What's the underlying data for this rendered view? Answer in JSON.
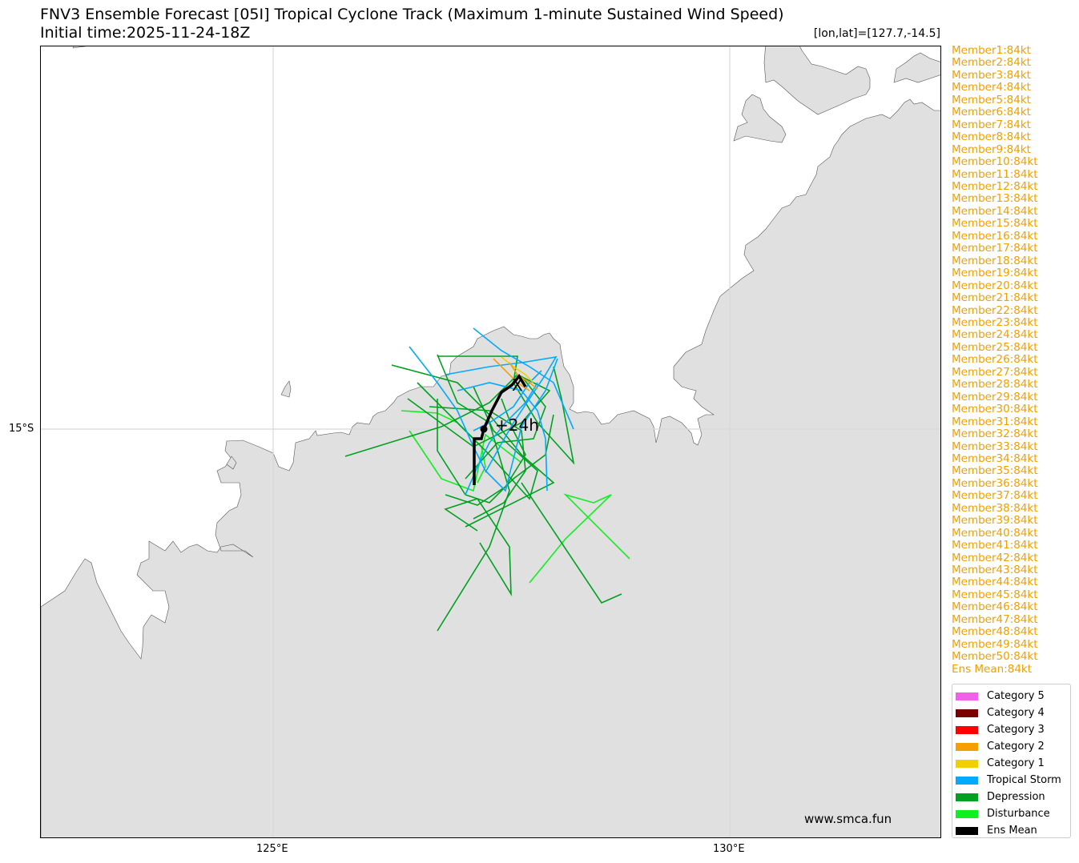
{
  "header": {
    "title_line1": "FNV3 Ensemble Forecast [05I] Tropical Cyclone Track (Maximum 1-minute Sustained Wind Speed)",
    "title_line2": "Initial time:2025-11-24-18Z",
    "coord_text": "[lon,lat]=[127.7,-14.5]"
  },
  "axes": {
    "lat_label": "15°S",
    "lon_labels": [
      "125°E",
      "130°E"
    ]
  },
  "map": {
    "ocean_color": "#ffffff",
    "land_color": "#e0e0e0",
    "coast_color": "#555555",
    "grid_color": "#d8d8d8",
    "annotation": "+24h",
    "storm_end_marker": "X"
  },
  "members": [
    "Member1:84kt",
    "Member2:84kt",
    "Member3:84kt",
    "Member4:84kt",
    "Member5:84kt",
    "Member6:84kt",
    "Member7:84kt",
    "Member8:84kt",
    "Member9:84kt",
    "Member10:84kt",
    "Member11:84kt",
    "Member12:84kt",
    "Member13:84kt",
    "Member14:84kt",
    "Member15:84kt",
    "Member16:84kt",
    "Member17:84kt",
    "Member18:84kt",
    "Member19:84kt",
    "Member20:84kt",
    "Member21:84kt",
    "Member22:84kt",
    "Member23:84kt",
    "Member24:84kt",
    "Member25:84kt",
    "Member26:84kt",
    "Member27:84kt",
    "Member28:84kt",
    "Member29:84kt",
    "Member30:84kt",
    "Member31:84kt",
    "Member32:84kt",
    "Member33:84kt",
    "Member34:84kt",
    "Member35:84kt",
    "Member36:84kt",
    "Member37:84kt",
    "Member38:84kt",
    "Member39:84kt",
    "Member40:84kt",
    "Member41:84kt",
    "Member42:84kt",
    "Member43:84kt",
    "Member44:84kt",
    "Member45:84kt",
    "Member46:84kt",
    "Member47:84kt",
    "Member48:84kt",
    "Member49:84kt",
    "Member50:84kt",
    "Ens Mean:84kt"
  ],
  "legend": [
    {
      "label": "Category 5",
      "color": "#f060e8"
    },
    {
      "label": "Category 4",
      "color": "#7a0000"
    },
    {
      "label": "Category 3",
      "color": "#ff0000"
    },
    {
      "label": "Category 2",
      "color": "#f5a000"
    },
    {
      "label": "Category 1",
      "color": "#f0d000"
    },
    {
      "label": "Tropical Storm",
      "color": "#00aaff"
    },
    {
      "label": "Depression",
      "color": "#00a020"
    },
    {
      "label": "Disturbance",
      "color": "#10f020"
    },
    {
      "label": "Ens Mean",
      "color": "#000000"
    }
  ],
  "website": "www.smca.fun"
}
